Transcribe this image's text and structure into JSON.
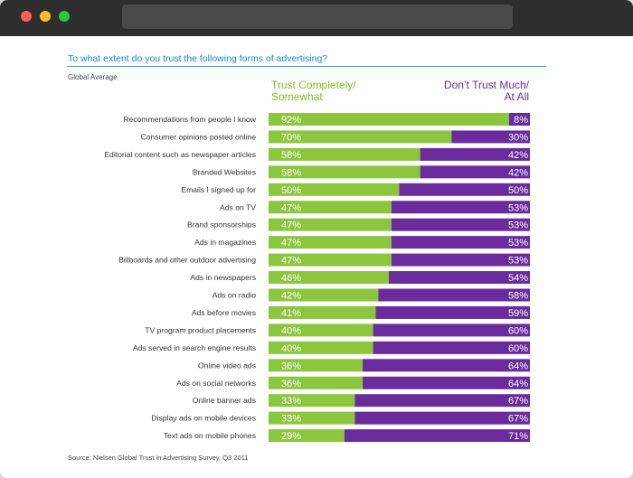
{
  "window": {
    "controls": [
      "close",
      "minimize",
      "maximize"
    ]
  },
  "chart_data": {
    "type": "bar",
    "orientation": "horizontal-stacked-100",
    "title": "To what extent do you trust the following forms of advertising?",
    "subtitle": "Global Average",
    "source": "Source: Nielsen Global Trust in Advertising Survey, Q3 2011",
    "legend": {
      "trust": [
        "Trust Completely/",
        "Somewhat"
      ],
      "dont": [
        "Don’t Trust Much/",
        "At All"
      ]
    },
    "categories": [
      "Recommendations from people I know",
      "Consumer opinions posted online",
      "Editorial content such as newspaper articles",
      "Branded Websites",
      "Emails I signed up for",
      "Ads on TV",
      "Brand sponsorships",
      "Ads in magazines",
      "Billboards and other outdoor advertising",
      "Ads in newspapers",
      "Ads on radio",
      "Ads before movies",
      "TV program product placements",
      "Ads served in search engine results",
      "Online video ads",
      "Ads on social networks",
      "Online banner ads",
      "Display ads on mobile devices",
      "Text ads on mobile phones"
    ],
    "series": [
      {
        "name": "Trust Completely/Somewhat",
        "color": "#8cc63f",
        "values": [
          92,
          70,
          58,
          58,
          50,
          47,
          47,
          47,
          47,
          46,
          42,
          41,
          40,
          40,
          36,
          36,
          33,
          33,
          29
        ]
      },
      {
        "name": "Don’t Trust Much/At All",
        "color": "#6a2c9c",
        "values": [
          8,
          30,
          42,
          42,
          50,
          53,
          53,
          53,
          53,
          54,
          58,
          59,
          60,
          60,
          64,
          64,
          67,
          67,
          71
        ]
      }
    ],
    "xlim": [
      0,
      100
    ]
  }
}
